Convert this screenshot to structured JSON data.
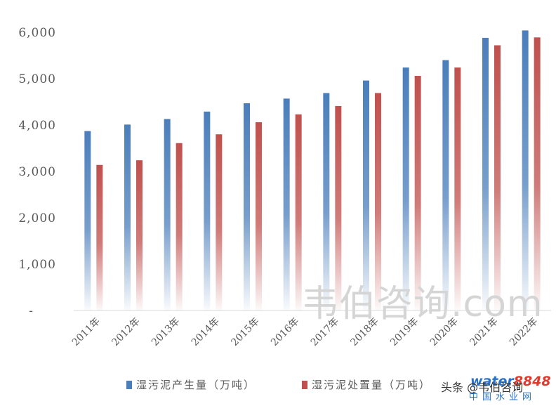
{
  "chart_data": {
    "type": "bar",
    "categories": [
      "2011年",
      "2012年",
      "2013年",
      "2014年",
      "2015年",
      "2016年",
      "2017年",
      "2018年",
      "2019年",
      "2020年",
      "2021年",
      "2022年"
    ],
    "series": [
      {
        "name": "湿污泥产生量（万吨）",
        "color": "#4a7ebb",
        "values": [
          3870,
          4010,
          4130,
          4290,
          4470,
          4570,
          4690,
          4960,
          5240,
          5400,
          5880,
          6040
        ]
      },
      {
        "name": "湿污泥处置量（万吨）",
        "color": "#c0504d",
        "values": [
          3140,
          3240,
          3610,
          3800,
          4060,
          4230,
          4410,
          4690,
          5060,
          5240,
          5720,
          5890
        ]
      }
    ],
    "yticks": [
      {
        "value": 0,
        "label": "-"
      },
      {
        "value": 1000,
        "label": "1,000"
      },
      {
        "value": 2000,
        "label": "2,000"
      },
      {
        "value": 3000,
        "label": "3,000"
      },
      {
        "value": 4000,
        "label": "4,000"
      },
      {
        "value": 5000,
        "label": "5,000"
      },
      {
        "value": 6000,
        "label": "6,000"
      }
    ],
    "ylim": [
      0,
      6000
    ],
    "grid": false,
    "legend": "bottom"
  },
  "watermark": {
    "text": "韦伯咨询.com"
  },
  "logo": {
    "brand_a": "water",
    "brand_b": "8848",
    "subtitle": "中国水业网"
  },
  "credit": {
    "text": "头条 @韦伯咨询"
  }
}
